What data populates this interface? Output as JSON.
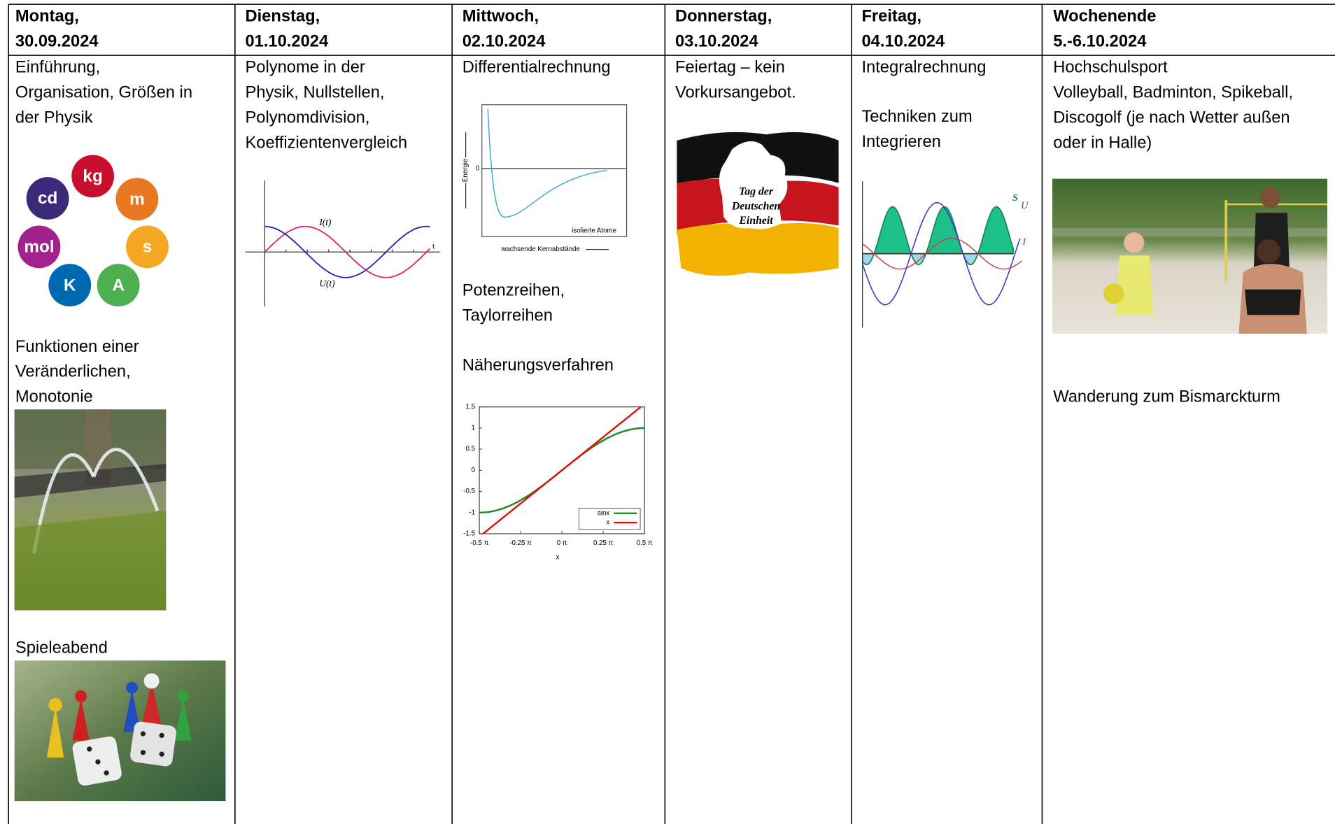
{
  "table": {
    "header": [
      [
        "Montag,",
        "30.09.2024"
      ],
      [
        "Dienstag,",
        "01.10.2024"
      ],
      [
        "Mittwoch,",
        "02.10.2024"
      ],
      [
        "Donnerstag,",
        "03.10.2024"
      ],
      [
        "Freitag,",
        "04.10.2024"
      ],
      [
        "Wochenende",
        "5.-6.10.2024"
      ]
    ],
    "columns": [
      {
        "blocks": [
          [
            "Einführung,",
            "Organisation, Größen in",
            "der Physik"
          ],
          [
            "Funktionen einer",
            "Veränderlichen,",
            "Monotonie"
          ],
          [
            "Spieleabend"
          ]
        ]
      },
      {
        "blocks": [
          [
            "Polynome in der",
            "Physik, Nullstellen,",
            "Polynomdivision,",
            "Koeffizientenvergleich"
          ]
        ]
      },
      {
        "blocks": [
          [
            "Differentialrechnung"
          ],
          [
            "Potenzreihen,",
            "Taylorreihen"
          ],
          [
            "Näherungsverfahren"
          ]
        ]
      },
      {
        "blocks": [
          [
            "Feiertag – kein",
            "Vorkursangebot."
          ]
        ]
      },
      {
        "blocks": [
          [
            "Integralrechnung"
          ],
          [
            "Techniken zum",
            "Integrieren"
          ]
        ]
      },
      {
        "blocks": [
          [
            "Hochschulsport",
            "Volleyball, Badminton, Spikeball,",
            "Discogolf (je nach Wetter außen",
            "oder in Halle)"
          ],
          [
            "Wanderung zum Bismarckturm"
          ]
        ]
      }
    ]
  },
  "figures": {
    "units": [
      "kg",
      "m",
      "s",
      "A",
      "K",
      "mol",
      "cd"
    ],
    "polynom": {
      "current": "I(t)",
      "voltage": "U(t)",
      "axis": "t"
    },
    "energy": {
      "y_label": "Energie",
      "zero": "0",
      "atoms": "isolierte Atome",
      "x_label": "wachsende Kernabstände"
    },
    "taylor": {
      "yticks": [
        "1.5",
        "1",
        "0.5",
        "0",
        "-0.5",
        "-1",
        "-1.5"
      ],
      "xticks": [
        "-0.5 π",
        "-0.25 π",
        "0 π",
        "0.25 π",
        "0.5 π"
      ],
      "x_label": "x",
      "legend": [
        "sinx",
        "x"
      ]
    },
    "holiday": [
      "Tag der",
      "Deutschen",
      "Einheit"
    ],
    "integral": {
      "power": "S",
      "voltage": "U",
      "current": "I"
    }
  }
}
